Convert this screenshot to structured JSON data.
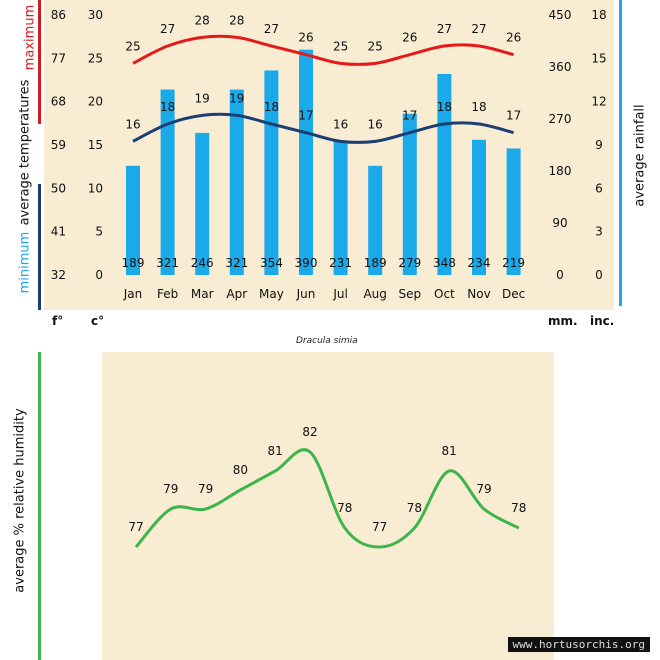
{
  "chart_data": [
    {
      "type": "bar",
      "title": "",
      "species": "Dracula simia",
      "categories": [
        "Jan",
        "Feb",
        "Mar",
        "Apr",
        "May",
        "Jun",
        "Jul",
        "Aug",
        "Sep",
        "Oct",
        "Nov",
        "Dec"
      ],
      "rainfall_mm": [
        189,
        321,
        246,
        321,
        354,
        390,
        231,
        189,
        279,
        348,
        234,
        219
      ],
      "max_temp_c": [
        25,
        27,
        28,
        28,
        27,
        26,
        25,
        25,
        26,
        27,
        27,
        26
      ],
      "min_temp_c": [
        16,
        18,
        19,
        19,
        18,
        17,
        16,
        16,
        17,
        18,
        18,
        17
      ],
      "axes": {
        "fahrenheit_ticks": [
          "86",
          "77",
          "68",
          "59",
          "50",
          "41",
          "32"
        ],
        "celsius_ticks": [
          "30",
          "25",
          "20",
          "15",
          "10",
          "5",
          "0"
        ],
        "mm_ticks": [
          "450",
          "360",
          "270",
          "180",
          "90",
          "0"
        ],
        "inch_ticks": [
          "18",
          "15",
          "12",
          "9",
          "6",
          "3",
          "0"
        ],
        "celsius_range": [
          0,
          30
        ],
        "mm_range": [
          0,
          450
        ]
      },
      "labels": {
        "left_maximum": "maximum",
        "left_average_temperatures": "average  temperatures",
        "left_minimum": "minimum",
        "right": "average rainfall",
        "unit_f": "f°",
        "unit_c": "c°",
        "unit_mm": "mm.",
        "unit_inc": "inc."
      },
      "colors": {
        "bars": "#1aaaea",
        "max_line": "#e41a1a",
        "min_line": "#1c3f73",
        "left_max_bar": "#d71920",
        "left_min_bar": "#1c3f73",
        "right_bar": "#1aaaea"
      }
    },
    {
      "type": "line",
      "title": "",
      "ylabel": "average %  relative humidity",
      "values": [
        77,
        79,
        79,
        80,
        81,
        82,
        78,
        77,
        78,
        81,
        79,
        78
      ],
      "colors": {
        "line": "#3cb54a",
        "side_bar": "#3cb54a"
      }
    }
  ],
  "watermark": "www.hortusorchis.org"
}
